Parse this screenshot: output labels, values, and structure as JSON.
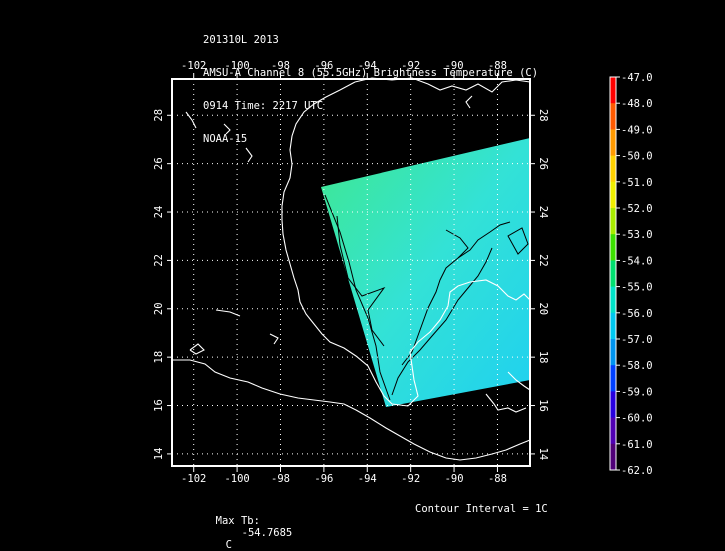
{
  "header": {
    "line1": "201310L 2013",
    "line2": "AMSU-A Channel 8 (55.5GHz) Brightness Temperature (C)",
    "line3": "0914 Time: 2217 UTC",
    "line4": "NOAA-15"
  },
  "map": {
    "lon_ticks": [
      "-102",
      "-100",
      "-98",
      "-96",
      "-94",
      "-92",
      "-90",
      "-88"
    ],
    "lat_ticks": [
      "14",
      "16",
      "18",
      "20",
      "22",
      "24",
      "26",
      "28"
    ],
    "lon_range": [
      -103,
      -86.5
    ],
    "lat_range": [
      13.5,
      29.5
    ],
    "swath_colors": [
      "#3fe890",
      "#33e2d6",
      "#1fd0f0"
    ]
  },
  "colorbar": {
    "labels": [
      "-47.0",
      "-48.0",
      "-49.0",
      "-50.0",
      "-51.0",
      "-52.0",
      "-53.0",
      "-54.0",
      "-55.0",
      "-56.0",
      "-57.0",
      "-58.0",
      "-59.0",
      "-60.0",
      "-61.0",
      "-62.0"
    ],
    "colors": [
      "#ff0000",
      "#ff5a00",
      "#ff9a00",
      "#ffd200",
      "#f0f000",
      "#a8ec00",
      "#3ce000",
      "#00e070",
      "#00e2c8",
      "#00c8f0",
      "#0094f0",
      "#0040ff",
      "#2800e0",
      "#5000b4",
      "#500078",
      "#ffffff"
    ]
  },
  "footer": {
    "max_tb_label": "Max Tb:",
    "max_tb_value": "-54.7685",
    "max_tb_unit": "C",
    "contour_interval": "Contour Interval = 1C"
  }
}
